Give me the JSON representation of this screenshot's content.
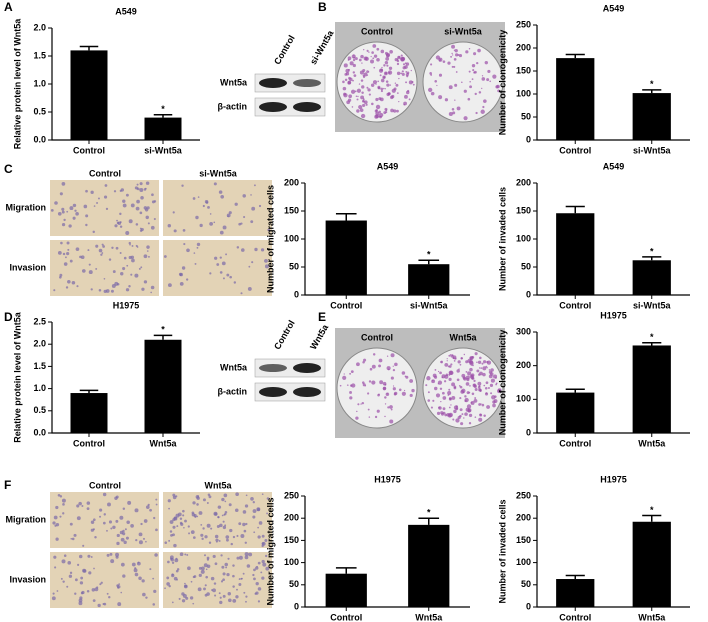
{
  "chart_data": [
    {
      "type": "bar",
      "title": "A549",
      "ylabel": "Relative protein level of Wnt5a",
      "categories": [
        "Control",
        "si-Wnt5a"
      ],
      "values": [
        1.6,
        0.4
      ],
      "errors": [
        0.07,
        0.05
      ],
      "significance": [
        null,
        "*"
      ],
      "color": "#000000",
      "ylim": [
        0,
        2.0
      ],
      "yticks": [
        {
          "value": 0,
          "label": "0.0"
        },
        0.5,
        {
          "value": 1,
          "label": "1.0"
        },
        1.5,
        {
          "value": 2,
          "label": "2.0"
        }
      ]
    },
    {
      "type": "bar",
      "title": "A549",
      "ylabel": "Number of clonogenicity",
      "categories": [
        "Control",
        "si-Wnt5a"
      ],
      "values": [
        178,
        102
      ],
      "errors": [
        8,
        7
      ],
      "significance": [
        null,
        "*"
      ],
      "color": "#000000",
      "ylim": [
        0,
        250
      ],
      "yticks": [
        0,
        50,
        100,
        150,
        200,
        250
      ]
    },
    {
      "type": "bar",
      "title": "A549",
      "ylabel": "Number of migrated cells",
      "categories": [
        "Control",
        "si-Wnt5a"
      ],
      "values": [
        133,
        55
      ],
      "errors": [
        12,
        7
      ],
      "significance": [
        null,
        "*"
      ],
      "color": "#000000",
      "ylim": [
        0,
        200
      ],
      "yticks": [
        0,
        50,
        100,
        150,
        200
      ]
    },
    {
      "type": "bar",
      "title": "A549",
      "ylabel": "Number of invaded cells",
      "categories": [
        "Control",
        "si-Wnt5a"
      ],
      "values": [
        146,
        62
      ],
      "errors": [
        12,
        6
      ],
      "significance": [
        null,
        "*"
      ],
      "color": "#000000",
      "ylim": [
        0,
        200
      ],
      "yticks": [
        0,
        50,
        100,
        150,
        200
      ]
    },
    {
      "type": "bar",
      "title": "H1975",
      "ylabel": "Relative protein level of Wnt5a",
      "categories": [
        "Control",
        "Wnt5a"
      ],
      "values": [
        0.9,
        2.1
      ],
      "errors": [
        0.06,
        0.1
      ],
      "significance": [
        null,
        "*"
      ],
      "color": "#000000",
      "ylim": [
        0,
        2.5
      ],
      "yticks": [
        {
          "value": 0,
          "label": "0.0"
        },
        0.5,
        {
          "value": 1,
          "label": "1.0"
        },
        1.5,
        {
          "value": 2,
          "label": "2.0"
        },
        2.5
      ]
    },
    {
      "type": "bar",
      "title": "H1975",
      "ylabel": "Number of clonogenicity",
      "categories": [
        "Control",
        "Wnt5a"
      ],
      "values": [
        120,
        260
      ],
      "errors": [
        10,
        8
      ],
      "significance": [
        null,
        "*"
      ],
      "color": "#000000",
      "ylim": [
        0,
        300
      ],
      "yticks": [
        0,
        100,
        200,
        300
      ]
    },
    {
      "type": "bar",
      "title": "H1975",
      "ylabel": "Number of migrated cells",
      "categories": [
        "Control",
        "Wnt5a"
      ],
      "values": [
        75,
        185
      ],
      "errors": [
        13,
        15
      ],
      "significance": [
        null,
        "*"
      ],
      "color": "#000000",
      "ylim": [
        0,
        250
      ],
      "yticks": [
        0,
        50,
        100,
        150,
        200,
        250
      ]
    },
    {
      "type": "bar",
      "title": "H1975",
      "ylabel": "Number of invaded cells",
      "categories": [
        "Control",
        "Wnt5a"
      ],
      "values": [
        63,
        192
      ],
      "errors": [
        8,
        14
      ],
      "significance": [
        null,
        "*"
      ],
      "color": "#000000",
      "ylim": [
        0,
        250
      ],
      "yticks": [
        0,
        50,
        100,
        150,
        200,
        250
      ]
    }
  ],
  "figure": {
    "panel_letters": [
      "A",
      "B",
      "C",
      "D",
      "E",
      "F"
    ],
    "blots": [
      {
        "lanes": [
          "Control",
          "si-Wnt5a"
        ],
        "rows": [
          "Wnt5a",
          "β-actin"
        ]
      },
      {
        "lanes": [
          "Control",
          "Wnt5a"
        ],
        "rows": [
          "Wnt5a",
          "β-actin"
        ]
      }
    ],
    "dishes": [
      {
        "labels": [
          "Control",
          "si-Wnt5a"
        ]
      },
      {
        "labels": [
          "Control",
          "Wnt5a"
        ]
      }
    ],
    "micrographs": [
      {
        "columns": [
          "Control",
          "si-Wnt5a"
        ],
        "rows": [
          "Migration",
          "Invasion"
        ]
      },
      {
        "columns": [
          "Control",
          "Wnt5a"
        ],
        "rows": [
          "Migration",
          "Invasion"
        ]
      }
    ]
  }
}
